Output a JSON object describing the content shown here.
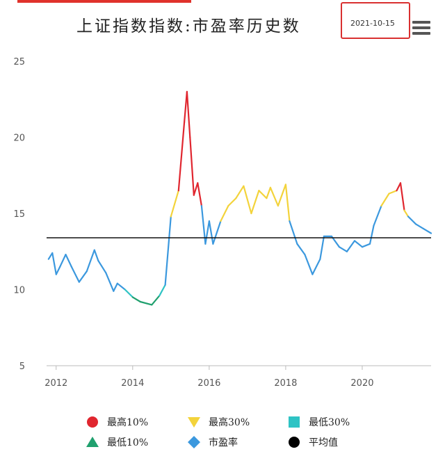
{
  "header": {
    "title": "上证指数指数:市盈率历史数",
    "date": "2021-10-15"
  },
  "chart_data": {
    "type": "line",
    "title": "上证指数指数:市盈率历史数",
    "xlabel": "",
    "ylabel": "",
    "xlim": [
      2011.75,
      2021.8
    ],
    "ylim": [
      5,
      25
    ],
    "y_ticks": [
      "25",
      "20",
      "15",
      "10",
      "5"
    ],
    "x_ticks": [
      "2012",
      "2014",
      "2016",
      "2018",
      "2020"
    ],
    "grid": false,
    "legend_position": "bottom",
    "average": 13.4,
    "series": [
      {
        "name": "市盈率",
        "x": [
          2011.8,
          2011.9,
          2012.0,
          2012.1,
          2012.25,
          2012.4,
          2012.6,
          2012.8,
          2013.0,
          2013.1,
          2013.3,
          2013.5,
          2013.6,
          2013.8,
          2014.0,
          2014.2,
          2014.5,
          2014.7,
          2014.85,
          2015.0,
          2015.2,
          2015.35,
          2015.42,
          2015.5,
          2015.6,
          2015.7,
          2015.8,
          2015.9,
          2016.0,
          2016.1,
          2016.3,
          2016.5,
          2016.7,
          2016.9,
          2017.1,
          2017.3,
          2017.5,
          2017.6,
          2017.8,
          2018.0,
          2018.1,
          2018.3,
          2018.5,
          2018.7,
          2018.9,
          2019.0,
          2019.2,
          2019.4,
          2019.6,
          2019.8,
          2020.0,
          2020.2,
          2020.3,
          2020.5,
          2020.7,
          2020.9,
          2021.0,
          2021.1,
          2021.2,
          2021.4,
          2021.6,
          2021.8
        ],
        "y": [
          12.0,
          12.4,
          11.0,
          11.5,
          12.3,
          11.5,
          10.5,
          11.2,
          12.6,
          11.9,
          11.1,
          9.9,
          10.4,
          10.0,
          9.5,
          9.2,
          9.0,
          9.6,
          10.3,
          14.8,
          16.5,
          21.0,
          23.0,
          20.0,
          16.2,
          17.0,
          15.5,
          13.0,
          14.5,
          13.0,
          14.5,
          15.5,
          16.0,
          16.8,
          15.0,
          16.5,
          16.0,
          16.7,
          15.5,
          16.9,
          14.5,
          13.0,
          12.3,
          11.0,
          12.0,
          13.5,
          13.5,
          12.8,
          12.5,
          13.2,
          12.8,
          13.0,
          14.2,
          15.5,
          16.3,
          16.5,
          17.0,
          15.2,
          14.8,
          14.3,
          14.0,
          13.7
        ]
      },
      {
        "name": "平均值",
        "x": [
          2011.75,
          2021.8
        ],
        "y": [
          13.4,
          13.4
        ]
      }
    ],
    "thresholds": {
      "highest10": 17.0,
      "highest30": 15.0,
      "lowest30": 10.0
    },
    "legend": [
      {
        "label": "最高10%",
        "color": "#e0262f",
        "marker": "circle"
      },
      {
        "label": "最高30%",
        "color": "#f3d33b",
        "marker": "triangle-down"
      },
      {
        "label": "最低30%",
        "color": "#2ec3c4",
        "marker": "square"
      },
      {
        "label": "最低10%",
        "color": "#20a06e",
        "marker": "triangle-up"
      },
      {
        "label": "市盈率",
        "color": "#3b98de",
        "marker": "diamond"
      },
      {
        "label": "平均值",
        "color": "#000000",
        "marker": "circle"
      }
    ]
  }
}
